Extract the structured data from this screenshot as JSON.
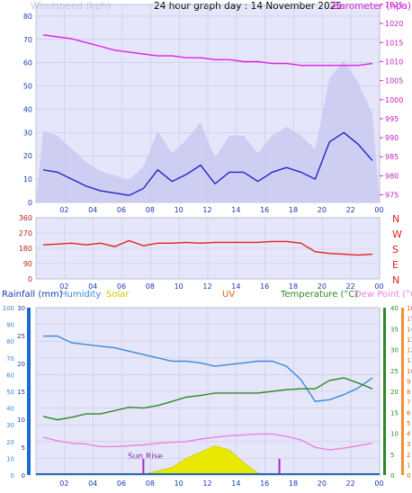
{
  "header": {
    "title": "24 hour graph day : 14 November 2025",
    "left_label": "Windspeed (kph)",
    "right_label": "Barometer (hpa)"
  },
  "wind_panel": {
    "yticks": [
      "80",
      "70",
      "60",
      "50",
      "40",
      "30",
      "20",
      "10",
      "0"
    ],
    "baro_ticks": [
      "1025",
      "1020",
      "1015",
      "1010",
      "1005",
      "1000",
      "995",
      "990",
      "985",
      "980",
      "975"
    ]
  },
  "direction_panel": {
    "yticks": [
      "360",
      "270",
      "180",
      "90",
      "0"
    ],
    "compass": [
      "N",
      "W",
      "S",
      "E",
      "N"
    ]
  },
  "bottom_panel": {
    "labels": {
      "rainfall": "Rainfall (mm)",
      "humidity": "Humidity",
      "solar": "Solar",
      "uv": "UV",
      "temperature": "Temperature (°C)",
      "dewpoint": "Dew Point (°C)"
    },
    "hum_ticks": [
      "100",
      "90",
      "80",
      "70",
      "60",
      "50",
      "40",
      "30",
      "20",
      "10",
      "0"
    ],
    "rain_ticks": [
      "30",
      "25",
      "20",
      "15",
      "10",
      "5",
      "0"
    ],
    "temp_ticks": [
      "40",
      "35",
      "30",
      "25",
      "20",
      "15",
      "10",
      "5",
      "0"
    ],
    "uv_ticks": [
      "16",
      "15",
      "14",
      "13",
      "12",
      "11",
      "10",
      "9",
      "8",
      "7",
      "6",
      "5",
      "4",
      "3",
      "2",
      "1",
      "0"
    ],
    "sunrise_label": "Sun Rise"
  },
  "x_labels": [
    "02",
    "04",
    "06",
    "08",
    "10",
    "12",
    "14",
    "16",
    "18",
    "20",
    "22",
    "00"
  ],
  "colors": {
    "plot_bg": "#e6e6fa",
    "wind_avg": "#2424c8",
    "gust": "#c8c8f0",
    "barometer": "#e020e0",
    "direction": "#e02020",
    "humidity": "#3a8ad8",
    "temperature": "#2a8a2a",
    "dewpoint": "#f080e0",
    "solar": "#e8e800",
    "uv": "#e06010",
    "rain": "#1a6ad0",
    "sunmarker": "#9a30c0"
  },
  "chart_data": [
    {
      "type": "line",
      "title": "24 hour graph day : 14 November 2025",
      "ylabel": "Windspeed (kph)",
      "y2label": "Barometer (hpa)",
      "ylim": [
        0,
        85
      ],
      "y2lim": [
        973,
        1025
      ],
      "x": [
        1,
        2,
        3,
        4,
        5,
        6,
        7,
        8,
        9,
        10,
        11,
        12,
        13,
        14,
        15,
        16,
        17,
        18,
        19,
        20,
        21,
        22,
        23,
        24
      ],
      "series": [
        {
          "name": "Windspeed (kph)",
          "values": [
            14,
            13,
            10,
            7,
            5,
            4,
            3,
            6,
            14,
            9,
            12,
            16,
            8,
            13,
            13,
            9,
            13,
            15,
            13,
            10,
            26,
            30,
            25,
            18
          ]
        },
        {
          "name": "Barometer (hpa)",
          "values": [
            1017,
            1016.5,
            1016,
            1015,
            1014,
            1013,
            1012.5,
            1012,
            1011.5,
            1011.5,
            1011,
            1011,
            1010.5,
            1010.5,
            1010,
            1010,
            1009.5,
            1009.5,
            1009,
            1009,
            1009,
            1009,
            1009,
            1009.5
          ]
        }
      ]
    },
    {
      "type": "line",
      "ylabel": "Wind Direction",
      "ylim": [
        0,
        360
      ],
      "x": [
        1,
        2,
        3,
        4,
        5,
        6,
        7,
        8,
        9,
        10,
        11,
        12,
        13,
        14,
        15,
        16,
        17,
        18,
        19,
        20,
        21,
        22,
        23,
        24
      ],
      "series": [
        {
          "name": "Wind Direction",
          "values": [
            200,
            205,
            210,
            200,
            210,
            190,
            225,
            195,
            210,
            210,
            215,
            210,
            215,
            215,
            215,
            215,
            220,
            220,
            210,
            160,
            150,
            145,
            140,
            145
          ]
        }
      ]
    },
    {
      "type": "line",
      "ylabel": "Humidity",
      "ylim": [
        0,
        100
      ],
      "y2label": "Temperature (°C)",
      "y2lim": [
        0,
        40
      ],
      "x": [
        1,
        2,
        3,
        4,
        5,
        6,
        7,
        8,
        9,
        10,
        11,
        12,
        13,
        14,
        15,
        16,
        17,
        18,
        19,
        20,
        21,
        22,
        23,
        24
      ],
      "series": [
        {
          "name": "Humidity",
          "values": [
            83,
            83,
            79,
            78,
            77,
            76,
            74,
            72,
            70,
            68,
            68,
            67,
            65,
            66,
            67,
            68,
            68,
            65,
            57,
            44,
            45,
            48,
            52,
            58
          ]
        },
        {
          "name": "Temperature (°C)",
          "values": [
            14,
            13.2,
            13.8,
            14.6,
            14.6,
            15.4,
            16.2,
            16,
            16.6,
            17.6,
            18.6,
            19,
            19.6,
            19.6,
            19.6,
            19.6,
            20,
            20.4,
            20.6,
            20.6,
            22.6,
            23.2,
            22,
            20.6
          ]
        },
        {
          "name": "Dew Point (°C)",
          "values": [
            9,
            8.2,
            7.6,
            7.4,
            6.8,
            6.8,
            7,
            7.2,
            7.6,
            7.8,
            8,
            8.6,
            9,
            9.4,
            9.6,
            9.8,
            9.8,
            9.2,
            8.4,
            6.6,
            6,
            6.4,
            7,
            7.6
          ]
        },
        {
          "name": "Solar",
          "values": [
            0,
            0,
            0,
            0,
            0,
            0,
            0,
            2,
            10,
            18,
            40,
            55,
            70,
            60,
            30,
            5,
            0,
            0,
            0,
            0,
            0,
            0,
            0,
            0
          ]
        }
      ]
    }
  ]
}
